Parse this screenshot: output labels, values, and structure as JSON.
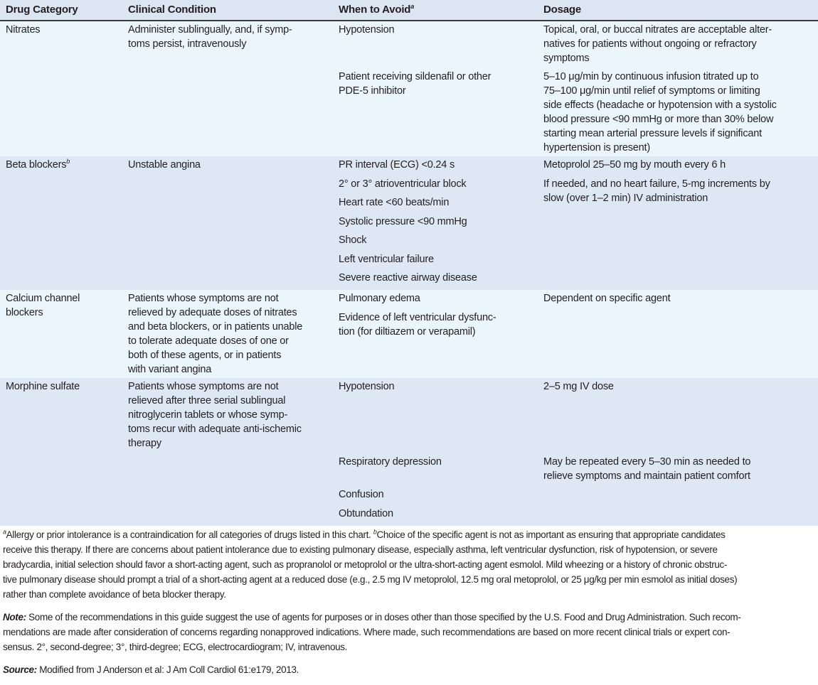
{
  "headers": {
    "category": "Drug Category",
    "condition": "Clinical Condition",
    "avoid": "When to Avoid",
    "avoid_sup": "a",
    "dosage": "Dosage"
  },
  "rows": [
    {
      "category": "Nitrates",
      "condition": "Administer sublingually, and, if symp-\ntoms persist, intravenously",
      "pairs": [
        {
          "avoid": "Hypotension",
          "dosage": "Topical, oral, or buccal nitrates are acceptable alter-\nnatives for patients without ongoing or refractory\nsymptoms"
        },
        {
          "avoid": "Patient receiving sildenafil or other\nPDE-5 inhibitor",
          "dosage": "5–10 μg/min by continuous infusion titrated up to\n75–100 μg/min until relief of symptoms or limiting\nside effects (headache or hypotension with a systolic\nblood pressure <90 mmHg or more than 30% below\nstarting mean arterial pressure levels if significant\nhypertension is present)"
        }
      ]
    },
    {
      "category": "Beta blockers",
      "category_sup": "b",
      "condition": "Unstable angina",
      "pairs": [
        {
          "avoid": "PR interval (ECG) <0.24 s",
          "dosage": "Metoprolol 25–50 mg by mouth every 6 h"
        },
        {
          "avoid": "2° or 3° atrioventricular block",
          "dosage": "If needed, and no heart failure, 5-mg increments by\nslow (over 1–2 min) IV administration"
        },
        {
          "avoid": "Heart rate <60 beats/min",
          "dosage": ""
        },
        {
          "avoid": "Systolic pressure <90 mmHg",
          "dosage": ""
        },
        {
          "avoid": "Shock",
          "dosage": ""
        },
        {
          "avoid": "Left ventricular failure",
          "dosage": ""
        },
        {
          "avoid": "Severe reactive airway disease",
          "dosage": ""
        }
      ]
    },
    {
      "category": "Calcium channel\nblockers",
      "condition": "Patients whose symptoms are not\nrelieved by adequate doses of nitrates\nand beta blockers, or in patients unable\nto tolerate adequate doses of one or\nboth of these agents, or in patients\nwith variant angina",
      "pairs": [
        {
          "avoid": "Pulmonary edema",
          "dosage": "Dependent on specific agent"
        },
        {
          "avoid": "Evidence of left ventricular dysfunc-\ntion (for diltiazem or verapamil)",
          "dosage": ""
        }
      ]
    },
    {
      "category": "Morphine sulfate",
      "condition": "Patients whose symptoms are not\nrelieved after three serial sublingual\nnitroglycerin tablets or whose symp-\ntoms recur with adequate anti-ischemic\ntherapy",
      "pairs": [
        {
          "avoid": "Hypotension",
          "dosage": "2–5 mg IV dose"
        },
        {
          "avoid": "Respiratory depression",
          "dosage": "May be repeated every 5–30 min as needed to\nrelieve symptoms and maintain patient comfort"
        },
        {
          "avoid": "Confusion",
          "dosage": ""
        },
        {
          "avoid": "Obtundation",
          "dosage": ""
        }
      ]
    }
  ],
  "footnotes": {
    "a_mark": "a",
    "a_text": "Allergy or prior intolerance is a contraindication for all categories of drugs listed in this chart. ",
    "b_mark": "b",
    "b_text": "Choice of the specific agent is not as important as ensuring that appropriate candidates\nreceive this therapy. If there are concerns about patient intolerance due to existing pulmonary disease, especially asthma, left ventricular dysfunction, risk of hypotension, or severe\nbradycardia, initial selection should favor a short-acting agent, such as propranolol or metoprolol or the ultra-short-acting agent esmolol. Mild wheezing or a history of chronic obstruc-\ntive pulmonary disease should prompt a trial of a short-acting agent at a reduced dose (e.g., 2.5 mg IV metoprolol, 12.5 mg oral metoprolol, or 25 μg/kg per min esmolol as initial doses)\nrather than complete avoidance of beta blocker therapy.",
    "note_label": "Note:",
    "note_text": " Some of the recommendations in this guide suggest the use of agents for purposes or in doses other than those specified by the U.S. Food and Drug Administration. Such recom-\nmendations are made after consideration of concerns regarding nonapproved indications. Where made, such recommendations are based on more recent clinical trials or expert con-\nsensus. 2°, second-degree; 3°, third-degree; ECG, electrocardiogram; IV, intravenous.",
    "source_label": "Source:",
    "source_text": " Modified from J Anderson et al: J Am Coll Cardiol 61:e179, 2013."
  }
}
